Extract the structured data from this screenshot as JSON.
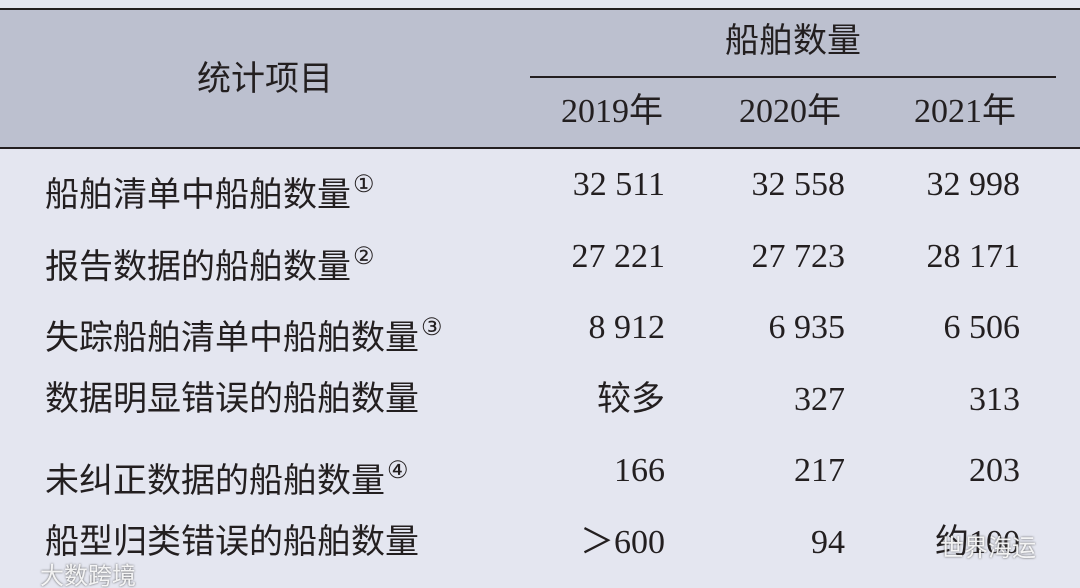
{
  "table": {
    "header": {
      "item": "统计项目",
      "group": "船舶数量",
      "years": [
        "2019年",
        "2020年",
        "2021年"
      ]
    },
    "rows": [
      {
        "label": "船舶清单中船舶数量",
        "note": "①",
        "cells": [
          "32 511",
          "32 558",
          "32 998"
        ]
      },
      {
        "label": "报告数据的船舶数量",
        "note": "②",
        "cells": [
          "27 221",
          "27 723",
          "28 171"
        ]
      },
      {
        "label": "失踪船舶清单中船舶数量",
        "note": "③",
        "cells": [
          "8 912",
          "6 935",
          "6 506"
        ]
      },
      {
        "label": "数据明显错误的船舶数量",
        "cells": [
          "较多",
          "327",
          "313"
        ]
      },
      {
        "label": "未纠正数据的船舶数量",
        "note": "④",
        "cells": [
          "166",
          "217",
          "203"
        ]
      },
      {
        "label": "船型归类错误的船舶数量",
        "cells": [
          "＞600",
          "94",
          "约100"
        ]
      }
    ]
  },
  "watermarks": [
    "大数跨境",
    "世界海运"
  ]
}
